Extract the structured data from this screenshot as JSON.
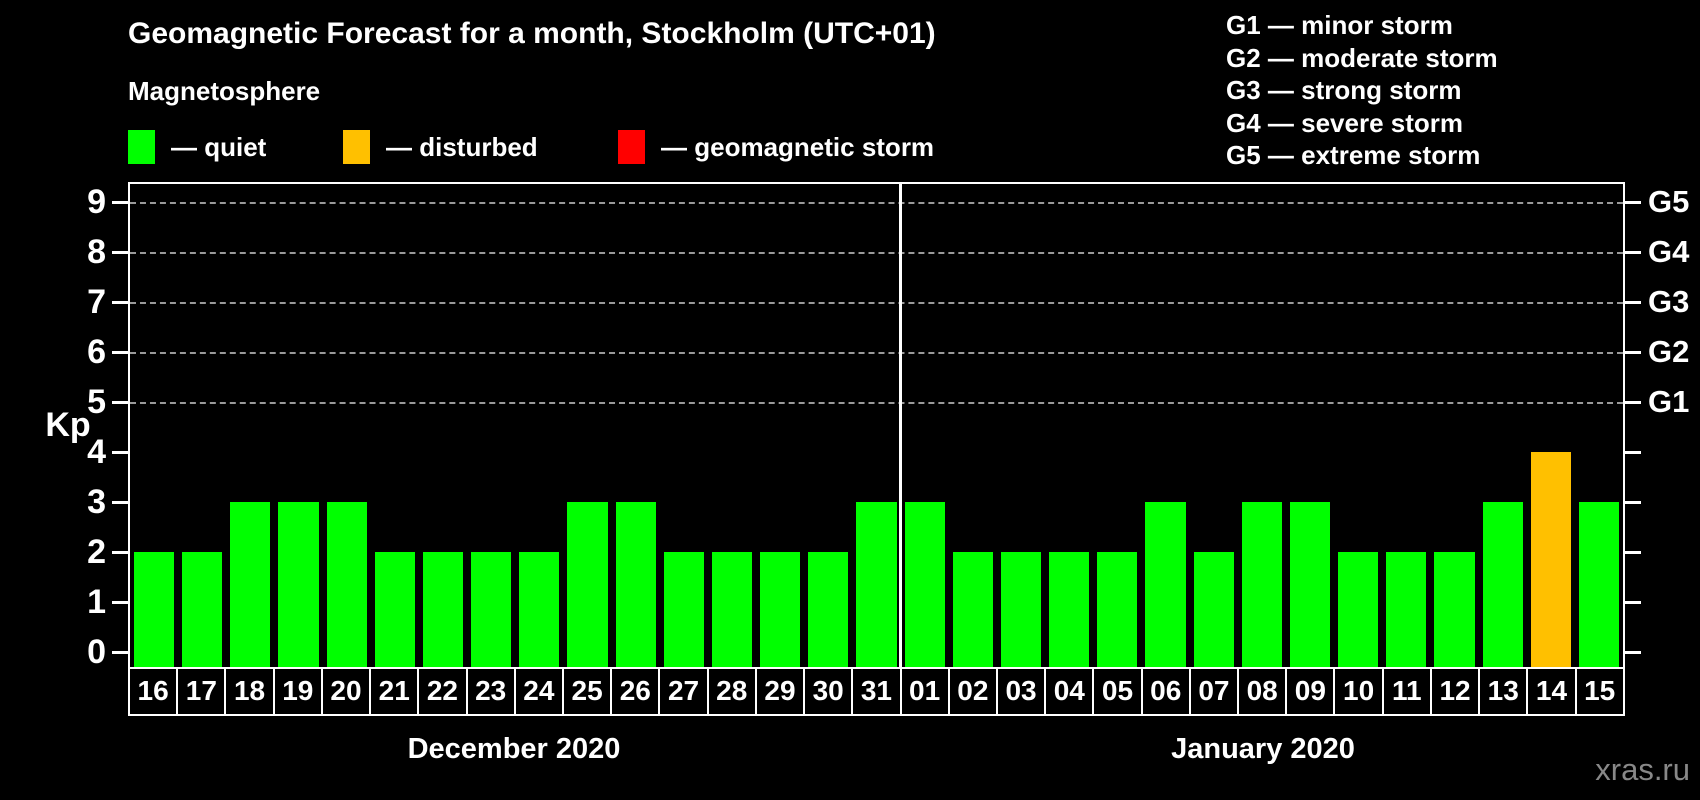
{
  "header": {
    "title": "Geomagnetic Forecast for a month, Stockholm (UTC+01)",
    "subtitle": "Magnetosphere"
  },
  "legend": {
    "items": [
      {
        "id": "quiet",
        "label": "— quiet",
        "color": "#00FF00"
      },
      {
        "id": "disturbed",
        "label": "— disturbed",
        "color": "#FFC000"
      },
      {
        "id": "storm",
        "label": "— geomagnetic storm",
        "color": "#FF0000"
      }
    ]
  },
  "g_legend": {
    "items": [
      {
        "label": "G1 — minor storm"
      },
      {
        "label": "G2 — moderate storm"
      },
      {
        "label": "G3 — strong storm"
      },
      {
        "label": "G4 — severe storm"
      },
      {
        "label": "G5 — extreme storm"
      }
    ]
  },
  "watermark": "xras.ru",
  "chart_data": {
    "type": "bar",
    "title": "Geomagnetic Forecast for a month, Stockholm (UTC+01)",
    "ylabel": "Kp",
    "ylim": [
      0,
      9
    ],
    "y_ticks": [
      0,
      1,
      2,
      3,
      4,
      5,
      6,
      7,
      8,
      9
    ],
    "grid_levels": [
      5,
      6,
      7,
      8,
      9
    ],
    "grid_style": "dashed gray horizontal lines at storm levels only",
    "legend_position": "top",
    "right_axis": [
      {
        "label": "G1",
        "kp": 5
      },
      {
        "label": "G2",
        "kp": 6
      },
      {
        "label": "G3",
        "kp": 7
      },
      {
        "label": "G4",
        "kp": 8
      },
      {
        "label": "G5",
        "kp": 9
      }
    ],
    "status_colors": {
      "quiet": "#00FF00",
      "disturbed": "#FFC000",
      "storm": "#FF0000"
    },
    "months": [
      {
        "label": "December 2020",
        "days": [
          "16",
          "17",
          "18",
          "19",
          "20",
          "21",
          "22",
          "23",
          "24",
          "25",
          "26",
          "27",
          "28",
          "29",
          "30",
          "31"
        ],
        "values": [
          2,
          2,
          3,
          3,
          3,
          2,
          2,
          2,
          2,
          3,
          3,
          2,
          2,
          2,
          2,
          3
        ],
        "statuses": [
          "quiet",
          "quiet",
          "quiet",
          "quiet",
          "quiet",
          "quiet",
          "quiet",
          "quiet",
          "quiet",
          "quiet",
          "quiet",
          "quiet",
          "quiet",
          "quiet",
          "quiet",
          "quiet"
        ]
      },
      {
        "label": "January 2020",
        "days": [
          "01",
          "02",
          "03",
          "04",
          "05",
          "06",
          "07",
          "08",
          "09",
          "10",
          "11",
          "12",
          "13",
          "14",
          "15"
        ],
        "values": [
          3,
          2,
          2,
          2,
          2,
          3,
          2,
          3,
          3,
          2,
          2,
          2,
          3,
          4,
          3
        ],
        "statuses": [
          "quiet",
          "quiet",
          "quiet",
          "quiet",
          "quiet",
          "quiet",
          "quiet",
          "quiet",
          "quiet",
          "quiet",
          "quiet",
          "quiet",
          "quiet",
          "disturbed",
          "quiet"
        ]
      }
    ]
  }
}
